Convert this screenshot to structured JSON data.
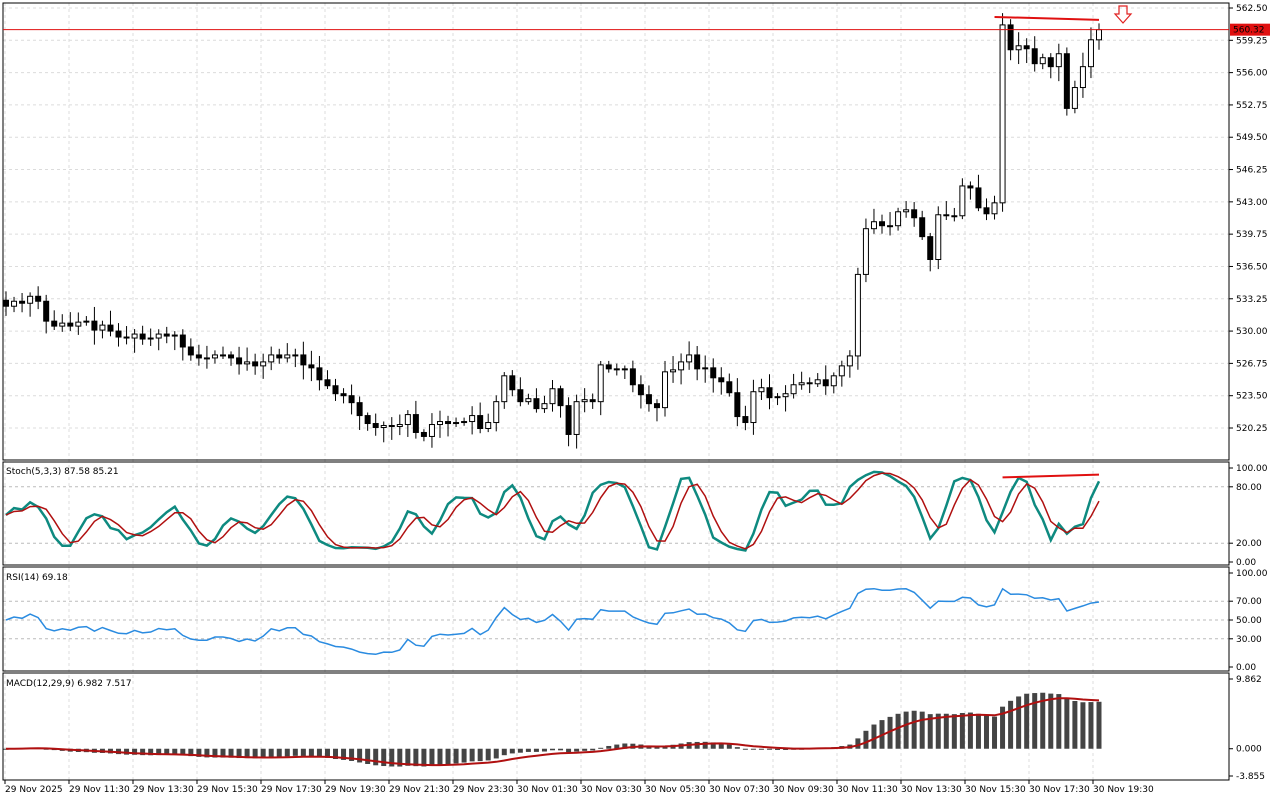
{
  "chart_data": [
    {
      "type": "candlestick",
      "pane": "price",
      "ylim": [
        518.5,
        562.5
      ],
      "y_ticks": [
        "562.50",
        "559.25",
        "556.00",
        "552.75",
        "549.50",
        "546.25",
        "543.00",
        "539.75",
        "536.50",
        "533.25",
        "530.00",
        "526.75",
        "523.50",
        "520.25"
      ],
      "y_tick_values": [
        562.5,
        559.25,
        556,
        552.75,
        549.5,
        546.25,
        543,
        539.75,
        536.5,
        533.25,
        530,
        526.75,
        523.5,
        520.25
      ],
      "current_price": 560.32,
      "current_price_label": "560.32",
      "closes": [
        532.5,
        533,
        532.8,
        533.5,
        533,
        531,
        530.5,
        530.8,
        530.5,
        530.9,
        531,
        530.1,
        530.6,
        530,
        529.4,
        529.3,
        529.7,
        529.2,
        529.3,
        529.7,
        529.5,
        529.6,
        528.4,
        527.6,
        527.3,
        527.3,
        527.6,
        527.6,
        527.3,
        526.7,
        526.9,
        526.5,
        526.9,
        527.6,
        527.3,
        527.6,
        527.6,
        526.6,
        526.3,
        525.1,
        524.5,
        523.7,
        523.5,
        522.8,
        521.5,
        520.7,
        520.3,
        520.5,
        520.4,
        520.6,
        521.6,
        519.8,
        519.4,
        520.6,
        520.9,
        520.7,
        520.8,
        520.9,
        521.5,
        520.2,
        520.8,
        522.9,
        525.5,
        524.1,
        522.9,
        523.2,
        522.2,
        522.7,
        524.2,
        522.5,
        519.6,
        522.9,
        523.1,
        522.9,
        526.6,
        526.2,
        526.2,
        526.2,
        524.6,
        523.6,
        522.7,
        522.3,
        525.9,
        526.1,
        526.9,
        527.6,
        526.2,
        526.3,
        525.3,
        524.9,
        523.8,
        521.4,
        520.8,
        523.9,
        524.3,
        523.3,
        523.4,
        523.7,
        524.6,
        524.8,
        524.7,
        525.1,
        524.5,
        525.5,
        526.5,
        527.5,
        535.7,
        540.3,
        541,
        540.6,
        540.6,
        542,
        542.2,
        541.4,
        539.5,
        537.2,
        541.7,
        541.6,
        541.6,
        544.6,
        544.4,
        542.4,
        541.8,
        542.9,
        560.8,
        558.3,
        558.7,
        558.4,
        556.9,
        557.5,
        556.6,
        557.9,
        552.4,
        554.5,
        556.6,
        559.3,
        560.32
      ],
      "series": [
        {
          "name": "Stoch(5,3,3)",
          "pane": "stoch",
          "label": "Stoch(5,3,3) 87.58 85.21",
          "ylim": [
            0,
            100
          ],
          "y_ticks": [
            "100.00",
            "80.00",
            "20.00",
            "0.00"
          ],
          "y_tick_values": [
            100,
            80,
            20,
            0
          ],
          "main_color": "#0e8a80",
          "signal_color": "#b01010"
        },
        {
          "name": "RSI(14)",
          "pane": "rsi",
          "label": "RSI(14) 69.18",
          "ylim": [
            0,
            100
          ],
          "y_ticks": [
            "100.00",
            "70.00",
            "50.00",
            "30.00",
            "0.00"
          ],
          "y_tick_values": [
            100,
            70,
            50,
            30,
            0
          ],
          "color": "#2a8be0"
        },
        {
          "name": "MACD(12,29,9)",
          "pane": "macd",
          "label": "MACD(12,29,9) 6.982 7.517",
          "ylim": [
            -3.855,
            9.862
          ],
          "y_ticks": [
            "9.862",
            "0.000",
            "-3.855"
          ],
          "y_tick_values": [
            9.862,
            0,
            -3.855
          ],
          "hist_color": "#444444",
          "signal_color": "#b01010"
        }
      ],
      "x_labels": [
        "29 Nov 2025",
        "29 Nov 11:30",
        "29 Nov 13:30",
        "29 Nov 15:30",
        "29 Nov 17:30",
        "29 Nov 19:30",
        "29 Nov 21:30",
        "29 Nov 23:30",
        "30 Nov 01:30",
        "30 Nov 03:30",
        "30 Nov 05:30",
        "30 Nov 07:30",
        "30 Nov 09:30",
        "30 Nov 11:30",
        "30 Nov 13:30",
        "30 Nov 15:30",
        "30 Nov 17:30",
        "30 Nov 19:30"
      ],
      "annotations": {
        "resistance_line": {
          "from": 561.6,
          "to": 561.3,
          "color": "#e01010"
        },
        "sell_arrow": {
          "direction": "down",
          "color": "#e02020"
        }
      },
      "grid": true,
      "colors": {
        "bull_candle": "#ffffff",
        "bear_candle": "#000000",
        "price_line": "#e01010",
        "price_label_bg": "#e01010",
        "grid": "#dcdcdc"
      }
    }
  ]
}
